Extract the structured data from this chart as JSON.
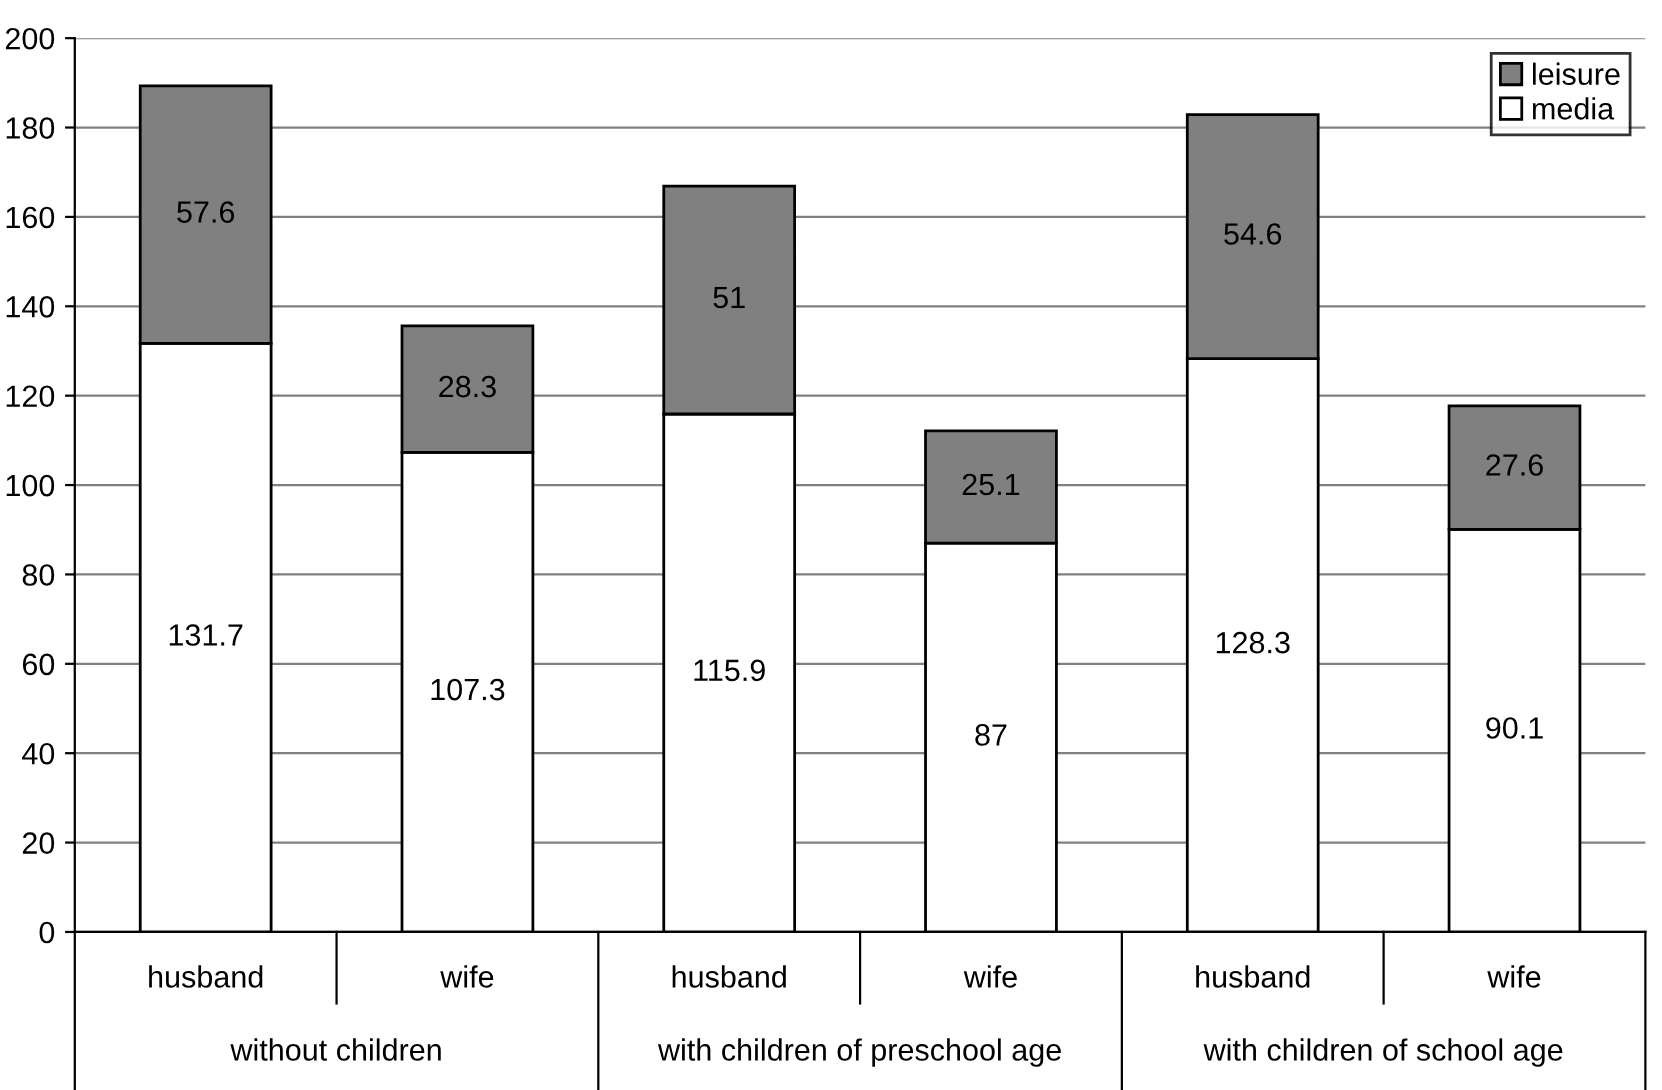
{
  "chart_data": {
    "type": "bar",
    "stacked": true,
    "categories": [
      "husband",
      "wife",
      "husband",
      "wife",
      "husband",
      "wife"
    ],
    "series": [
      {
        "name": "media",
        "color": "#ffffff",
        "values": [
          131.7,
          107.3,
          115.9,
          87,
          128.3,
          90.1
        ]
      },
      {
        "name": "leisure",
        "color": "#808080",
        "values": [
          57.6,
          28.3,
          51,
          25.1,
          54.6,
          27.6
        ]
      }
    ],
    "annotations": [
      "without children",
      "with children of preschool age",
      "with children of school age"
    ],
    "ylim": [
      0,
      200
    ],
    "yticks": [
      0,
      20,
      40,
      60,
      80,
      100,
      120,
      140,
      160,
      180,
      200
    ],
    "grid": "y",
    "legend": "top right",
    "data_labels": true
  }
}
